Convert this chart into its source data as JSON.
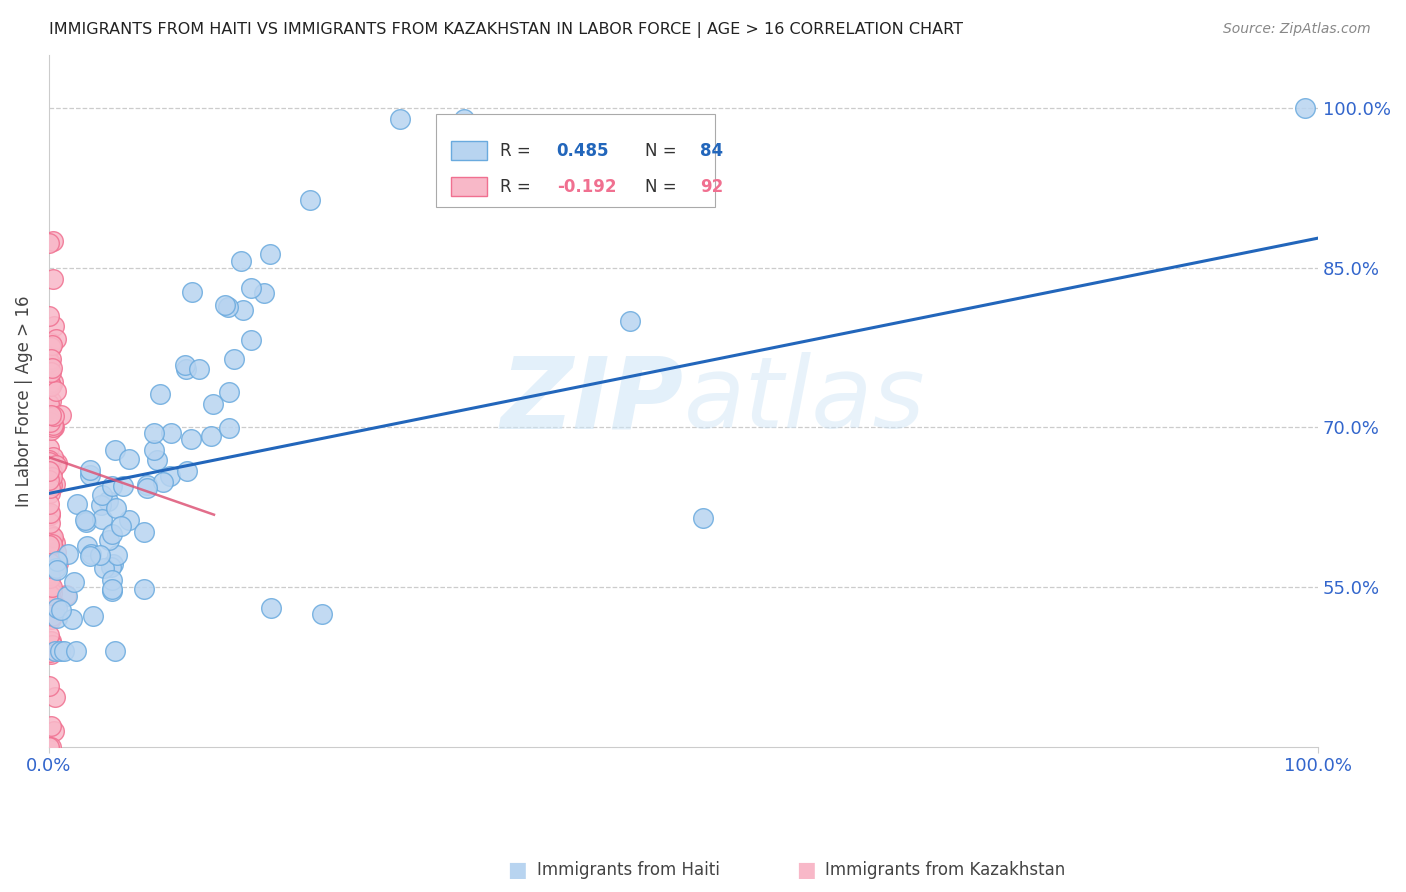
{
  "title": "IMMIGRANTS FROM HAITI VS IMMIGRANTS FROM KAZAKHSTAN IN LABOR FORCE | AGE > 16 CORRELATION CHART",
  "source": "Source: ZipAtlas.com",
  "ylabel": "In Labor Force | Age > 16",
  "y_tick_values": [
    0.55,
    0.7,
    0.85,
    1.0
  ],
  "y_tick_labels": [
    "55.0%",
    "70.0%",
    "85.0%",
    "100.0%"
  ],
  "xlim": [
    0.0,
    1.0
  ],
  "ylim": [
    0.4,
    1.05
  ],
  "legend_haiti_R": "0.485",
  "legend_haiti_N": "84",
  "legend_kaz_R": "-0.192",
  "legend_kaz_N": "92",
  "haiti_fill": "#b8d4f0",
  "haiti_edge": "#6aaade",
  "kaz_fill": "#f8b8c8",
  "kaz_edge": "#f07090",
  "trend_haiti_color": "#2266bb",
  "trend_kaz_color": "#dd5577",
  "background_color": "#ffffff",
  "grid_color": "#cccccc",
  "axis_label_color": "#3366cc",
  "watermark_color": "#ddeeff",
  "title_color": "#222222",
  "source_color": "#888888",
  "ylabel_color": "#444444",
  "haiti_trend_x0": 0.0,
  "haiti_trend_x1": 1.0,
  "haiti_trend_y0": 0.638,
  "haiti_trend_y1": 0.878,
  "kaz_trend_x0": 0.0,
  "kaz_trend_x1": 0.13,
  "kaz_trend_y0": 0.672,
  "kaz_trend_y1": 0.618
}
